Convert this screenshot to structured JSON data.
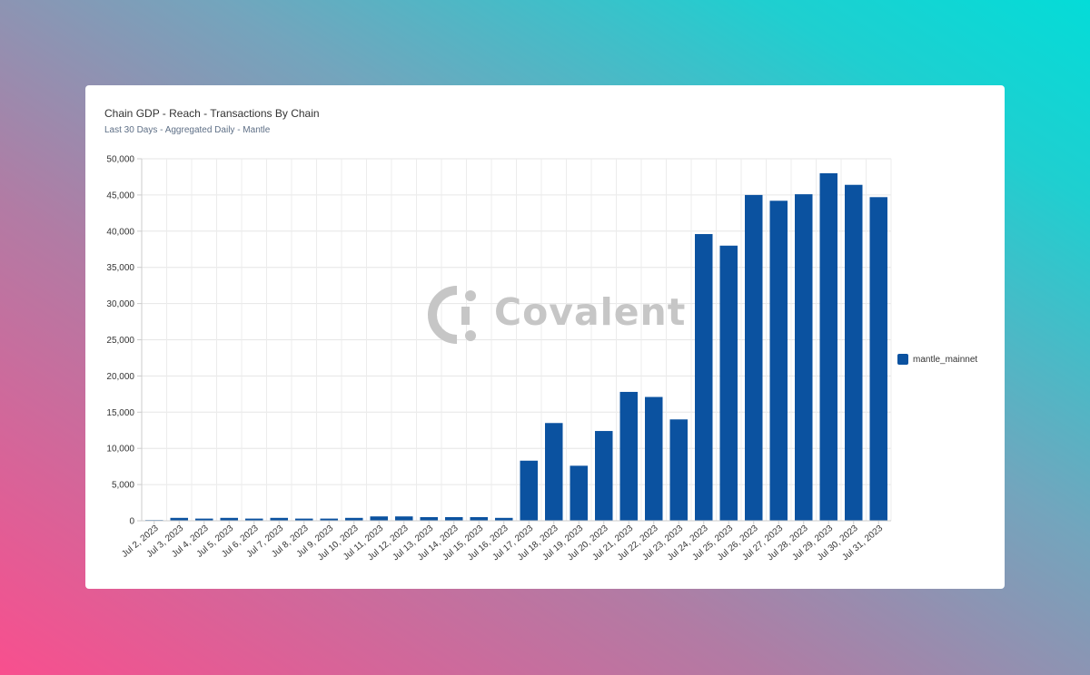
{
  "chart_data": {
    "type": "bar",
    "title": "Chain GDP - Reach - Transactions By Chain",
    "subtitle": "Last 30 Days - Aggregated Daily - Mantle",
    "xlabel": "",
    "ylabel": "",
    "ylim": [
      0,
      50000
    ],
    "yticks": [
      "0",
      "5,000",
      "10,000",
      "15,000",
      "20,000",
      "25,000",
      "30,000",
      "35,000",
      "40,000",
      "45,000",
      "50,000"
    ],
    "grid": true,
    "legend_position": "right",
    "categories": [
      "Jul 2, 2023",
      "Jul 3, 2023",
      "Jul 4, 2023",
      "Jul 5, 2023",
      "Jul 6, 2023",
      "Jul 7, 2023",
      "Jul 8, 2023",
      "Jul 9, 2023",
      "Jul 10, 2023",
      "Jul 11, 2023",
      "Jul 12, 2023",
      "Jul 13, 2023",
      "Jul 14, 2023",
      "Jul 15, 2023",
      "Jul 16, 2023",
      "Jul 17, 2023",
      "Jul 18, 2023",
      "Jul 19, 2023",
      "Jul 20, 2023",
      "Jul 21, 2023",
      "Jul 22, 2023",
      "Jul 23, 2023",
      "Jul 24, 2023",
      "Jul 25, 2023",
      "Jul 26, 2023",
      "Jul 27, 2023",
      "Jul 28, 2023",
      "Jul 29, 2023",
      "Jul 30, 2023",
      "Jul 31, 2023"
    ],
    "series": [
      {
        "name": "mantle_mainnet",
        "color": "#0b52a0",
        "values": [
          100,
          400,
          300,
          400,
          300,
          400,
          300,
          300,
          400,
          600,
          600,
          500,
          500,
          500,
          400,
          8300,
          13500,
          7600,
          12400,
          17800,
          17100,
          14000,
          39600,
          38000,
          45000,
          44200,
          45100,
          48000,
          46400,
          44700
        ]
      }
    ]
  },
  "watermark": {
    "text": "Covalent",
    "icon": "covalent-logo-icon"
  }
}
